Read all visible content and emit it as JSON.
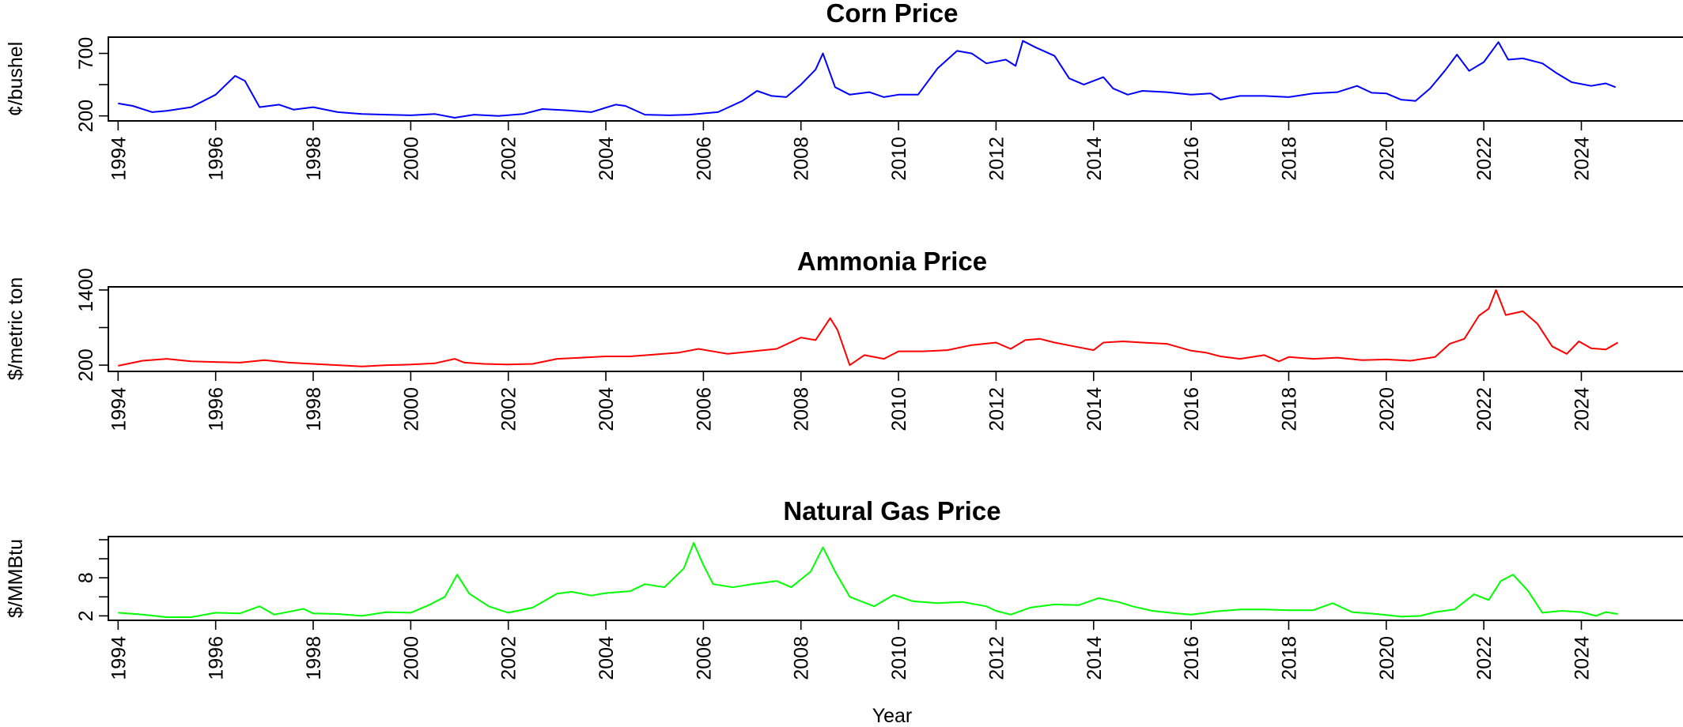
{
  "chart_data": [
    {
      "type": "line",
      "title": "Corn Price",
      "ylabel": "¢/bushel",
      "xlabel": "",
      "xlim": [
        1993.8,
        2026.1
      ],
      "ylim": [
        160,
        830
      ],
      "yticks": [
        200,
        450,
        700
      ],
      "ytick_labels": [
        "200",
        "",
        "700"
      ],
      "xticks": [
        1994,
        1996,
        1998,
        2000,
        2002,
        2004,
        2006,
        2008,
        2010,
        2012,
        2014,
        2016,
        2018,
        2020,
        2022,
        2024
      ],
      "series": [
        {
          "color": "#0000ff",
          "x": [
            1994.0,
            1994.3,
            1994.7,
            1995.0,
            1995.5,
            1996.0,
            1996.4,
            1996.6,
            1996.9,
            1997.3,
            1997.6,
            1998.0,
            1998.5,
            1999.0,
            1999.5,
            2000.0,
            2000.5,
            2000.9,
            2001.3,
            2001.8,
            2002.3,
            2002.7,
            2003.2,
            2003.7,
            2004.2,
            2004.4,
            2004.8,
            2005.3,
            2005.7,
            2006.3,
            2006.8,
            2007.1,
            2007.4,
            2007.7,
            2008.0,
            2008.3,
            2008.45,
            2008.7,
            2009.0,
            2009.4,
            2009.7,
            2010.0,
            2010.4,
            2010.8,
            2011.2,
            2011.5,
            2011.8,
            2012.2,
            2012.4,
            2012.55,
            2012.8,
            2013.2,
            2013.5,
            2013.8,
            2014.2,
            2014.4,
            2014.7,
            2015.0,
            2015.5,
            2016.0,
            2016.4,
            2016.6,
            2017.0,
            2017.5,
            2018.0,
            2018.5,
            2019.0,
            2019.4,
            2019.7,
            2020.0,
            2020.3,
            2020.6,
            2020.9,
            2021.2,
            2021.45,
            2021.7,
            2022.0,
            2022.3,
            2022.5,
            2022.8,
            2023.2,
            2023.5,
            2023.8,
            2024.2,
            2024.5,
            2024.7
          ],
          "values": [
            300,
            280,
            230,
            240,
            270,
            370,
            520,
            480,
            270,
            290,
            250,
            270,
            230,
            215,
            210,
            205,
            215,
            185,
            210,
            200,
            215,
            255,
            245,
            230,
            290,
            280,
            210,
            205,
            210,
            230,
            320,
            400,
            360,
            350,
            450,
            570,
            700,
            430,
            370,
            390,
            350,
            370,
            370,
            580,
            720,
            700,
            620,
            650,
            600,
            800,
            750,
            680,
            500,
            450,
            510,
            420,
            370,
            400,
            390,
            370,
            380,
            330,
            360,
            360,
            350,
            380,
            390,
            440,
            385,
            380,
            330,
            320,
            420,
            560,
            690,
            560,
            630,
            790,
            650,
            660,
            620,
            540,
            470,
            440,
            460,
            430
          ]
        }
      ]
    },
    {
      "type": "line",
      "title": "Ammonia Price",
      "ylabel": "$/metric ton",
      "xlabel": "",
      "xlim": [
        1993.8,
        2026.1
      ],
      "ylim": [
        100,
        1450
      ],
      "yticks": [
        200,
        800,
        1400
      ],
      "ytick_labels": [
        "200",
        "",
        "1400"
      ],
      "xticks": [
        1994,
        1996,
        1998,
        2000,
        2002,
        2004,
        2006,
        2008,
        2010,
        2012,
        2014,
        2016,
        2018,
        2020,
        2022,
        2024
      ],
      "series": [
        {
          "color": "#ff0000",
          "x": [
            1994.0,
            1994.5,
            1995.0,
            1995.5,
            1996.0,
            1996.5,
            1997.0,
            1997.5,
            1998.0,
            1998.5,
            1999.0,
            1999.5,
            2000.0,
            2000.5,
            2000.9,
            2001.1,
            2001.5,
            2002.0,
            2002.5,
            2003.0,
            2003.5,
            2004.0,
            2004.5,
            2005.0,
            2005.5,
            2005.9,
            2006.5,
            2007.0,
            2007.5,
            2008.0,
            2008.3,
            2008.6,
            2008.75,
            2009.0,
            2009.3,
            2009.7,
            2010.0,
            2010.5,
            2011.0,
            2011.5,
            2012.0,
            2012.3,
            2012.6,
            2012.9,
            2013.2,
            2013.6,
            2014.0,
            2014.2,
            2014.6,
            2015.0,
            2015.5,
            2016.0,
            2016.3,
            2016.6,
            2017.0,
            2017.5,
            2017.8,
            2018.0,
            2018.5,
            2019.0,
            2019.5,
            2020.0,
            2020.5,
            2021.0,
            2021.3,
            2021.6,
            2021.9,
            2022.1,
            2022.25,
            2022.45,
            2022.8,
            2023.1,
            2023.4,
            2023.7,
            2023.95,
            2024.2,
            2024.5,
            2024.75
          ],
          "values": [
            190,
            270,
            300,
            260,
            250,
            240,
            280,
            240,
            220,
            200,
            180,
            200,
            210,
            230,
            300,
            240,
            220,
            210,
            220,
            300,
            320,
            340,
            340,
            370,
            400,
            460,
            380,
            420,
            460,
            640,
            600,
            950,
            760,
            200,
            360,
            300,
            420,
            420,
            440,
            520,
            560,
            460,
            600,
            620,
            560,
            500,
            440,
            560,
            580,
            560,
            540,
            430,
            400,
            340,
            300,
            360,
            260,
            330,
            300,
            320,
            280,
            290,
            270,
            330,
            540,
            620,
            990,
            1100,
            1400,
            1000,
            1060,
            860,
            500,
            380,
            580,
            470,
            450,
            560
          ]
        }
      ]
    },
    {
      "type": "line",
      "title": "Natural Gas Price",
      "ylabel": "$/MMBtu",
      "xlabel": "Year",
      "xlim": [
        1993.8,
        2026.1
      ],
      "ylim": [
        1.3,
        14.5
      ],
      "yticks": [
        2,
        5,
        8,
        11,
        14
      ],
      "ytick_labels": [
        "2",
        "",
        "8",
        "",
        ""
      ],
      "xticks": [
        1994,
        1996,
        1998,
        2000,
        2002,
        2004,
        2006,
        2008,
        2010,
        2012,
        2014,
        2016,
        2018,
        2020,
        2022,
        2024
      ],
      "series": [
        {
          "color": "#00ff00",
          "x": [
            1994.0,
            1994.5,
            1995.0,
            1995.5,
            1996.0,
            1996.5,
            1996.9,
            1997.2,
            1997.8,
            1998.0,
            1998.5,
            1999.0,
            1999.5,
            2000.0,
            2000.4,
            2000.7,
            2000.95,
            2001.2,
            2001.6,
            2002.0,
            2002.5,
            2003.0,
            2003.3,
            2003.7,
            2004.0,
            2004.5,
            2004.8,
            2005.2,
            2005.6,
            2005.8,
            2006.0,
            2006.2,
            2006.6,
            2007.0,
            2007.5,
            2007.8,
            2008.2,
            2008.45,
            2008.7,
            2009.0,
            2009.5,
            2009.9,
            2010.3,
            2010.8,
            2011.3,
            2011.8,
            2012.0,
            2012.3,
            2012.7,
            2013.2,
            2013.7,
            2014.1,
            2014.5,
            2014.8,
            2015.2,
            2015.7,
            2016.0,
            2016.5,
            2017.0,
            2017.5,
            2018.0,
            2018.5,
            2018.9,
            2019.3,
            2019.8,
            2020.3,
            2020.7,
            2021.0,
            2021.4,
            2021.8,
            2022.1,
            2022.35,
            2022.6,
            2022.9,
            2023.2,
            2023.6,
            2024.0,
            2024.3,
            2024.5,
            2024.75
          ],
          "values": [
            2.5,
            2.2,
            1.8,
            1.8,
            2.5,
            2.4,
            3.5,
            2.2,
            3.1,
            2.4,
            2.3,
            2.0,
            2.6,
            2.5,
            3.8,
            5.0,
            8.5,
            5.5,
            3.5,
            2.5,
            3.3,
            5.5,
            5.8,
            5.2,
            5.6,
            5.9,
            7.0,
            6.5,
            9.5,
            13.5,
            10.0,
            7.0,
            6.5,
            7.0,
            7.5,
            6.5,
            9.0,
            12.8,
            9.0,
            5.0,
            3.5,
            5.3,
            4.3,
            4.0,
            4.2,
            3.5,
            2.8,
            2.2,
            3.3,
            3.8,
            3.7,
            4.8,
            4.2,
            3.5,
            2.8,
            2.4,
            2.2,
            2.7,
            3.0,
            3.0,
            2.9,
            2.9,
            4.0,
            2.6,
            2.3,
            1.9,
            2.0,
            2.6,
            3.0,
            5.4,
            4.5,
            7.5,
            8.5,
            6.0,
            2.5,
            2.8,
            2.6,
            2.0,
            2.6,
            2.3
          ]
        }
      ]
    }
  ]
}
